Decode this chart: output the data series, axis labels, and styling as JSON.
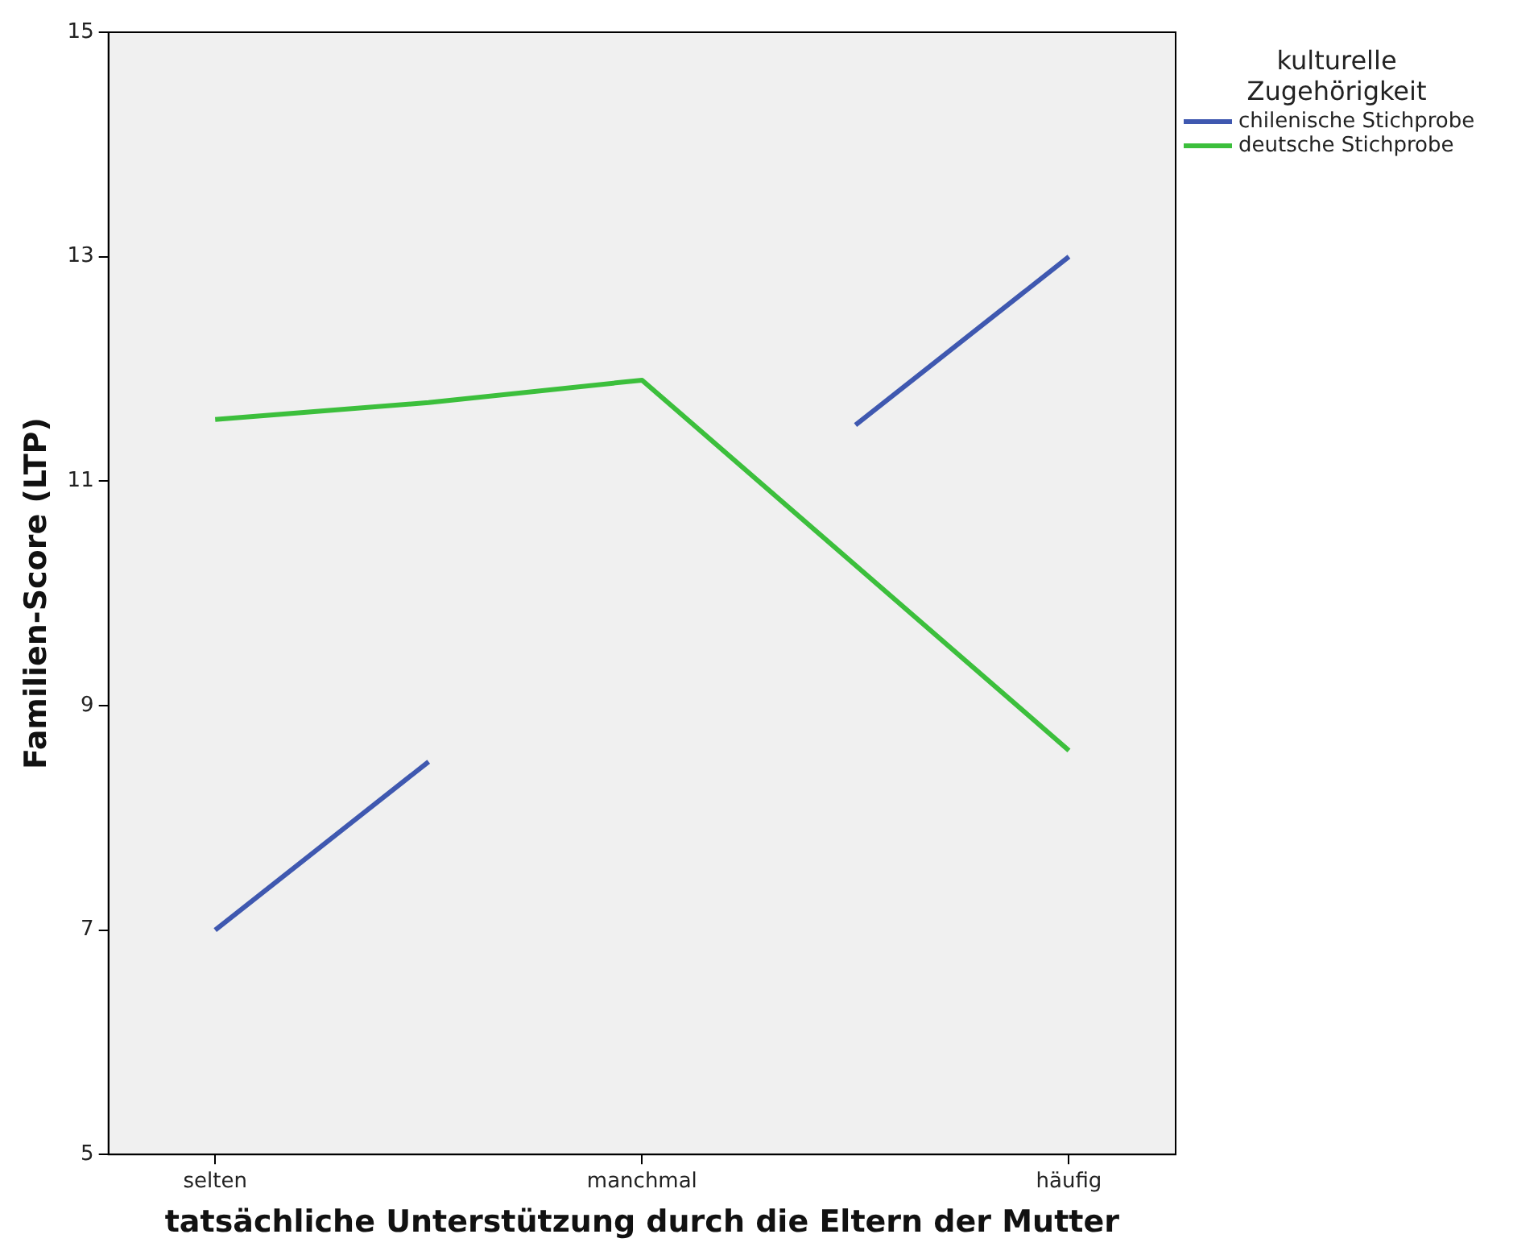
{
  "chart_data": {
    "type": "line",
    "xlabel": "tatsächliche Unterstützung durch die Eltern der Mutter",
    "ylabel": "Familien-Score (LTP)",
    "legend_title": "kulturelle Zugehörigkeit",
    "categories": [
      "selten",
      null,
      "manchmal",
      null,
      "häufig"
    ],
    "series": [
      {
        "name": "chilenische Stichprobe",
        "color": "#3f58b0",
        "values": [
          7,
          8.5,
          null,
          11.5,
          13
        ]
      },
      {
        "name": "deutsche Stichprobe",
        "color": "#3cbf3c",
        "values": [
          11.55,
          11.7,
          11.9,
          10.25,
          8.6
        ]
      }
    ],
    "ylim": [
      5,
      15
    ],
    "yticks": [
      5,
      7,
      9,
      11,
      13,
      15
    ],
    "grid": false,
    "legend": "top right",
    "marker": "none"
  }
}
